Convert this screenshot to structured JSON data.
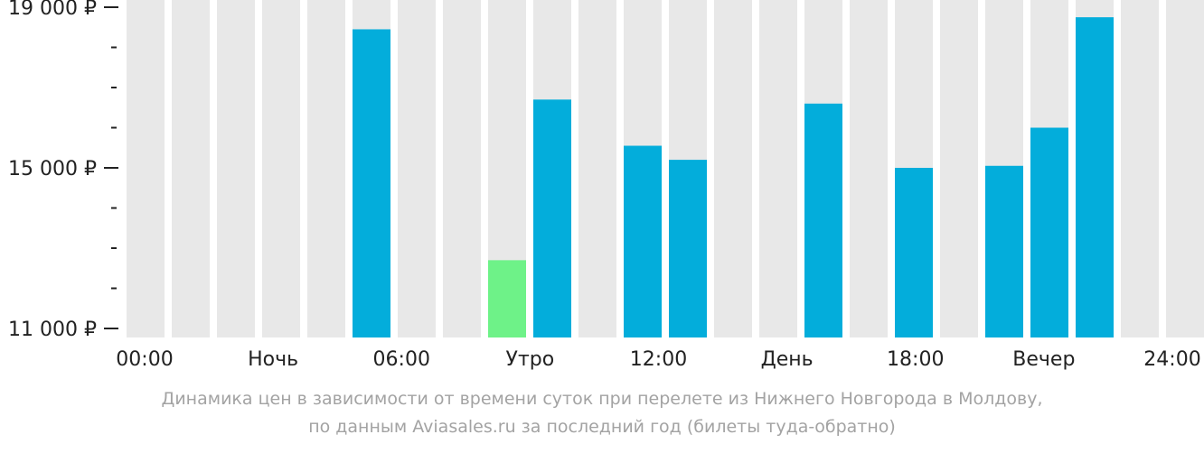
{
  "chart_data": {
    "type": "bar",
    "categories": [
      "00:00",
      "01:00",
      "02:00",
      "03:00",
      "04:00",
      "05:00",
      "06:00",
      "07:00",
      "08:00",
      "09:00",
      "10:00",
      "11:00",
      "12:00",
      "13:00",
      "14:00",
      "15:00",
      "16:00",
      "17:00",
      "18:00",
      "19:00",
      "20:00",
      "21:00",
      "22:00",
      "23:00"
    ],
    "values": [
      null,
      null,
      null,
      null,
      null,
      18450,
      null,
      null,
      12700,
      16700,
      null,
      15550,
      15200,
      null,
      null,
      16600,
      null,
      15000,
      null,
      15050,
      16000,
      18750,
      null,
      null
    ],
    "highlight_index": 8,
    "ylim": [
      11000,
      19000
    ],
    "yticks": [
      {
        "value": 11000,
        "label": "11 000 ₽"
      },
      {
        "value": 15000,
        "label": "15 000 ₽"
      },
      {
        "value": 19000,
        "label": "19 000 ₽"
      }
    ],
    "xtick_labels": [
      "00:00",
      "Ночь",
      "06:00",
      "Утро",
      "12:00",
      "День",
      "18:00",
      "Вечер",
      "24:00"
    ],
    "title": "",
    "xlabel": "",
    "ylabel": ""
  },
  "caption": {
    "line1": "Динамика цен в зависимости от времени суток при перелете из Нижнего Новгорода в Молдову,",
    "line2": "по данным Aviasales.ru за последний год (билеты туда-обратно)"
  },
  "colors": {
    "bar": "#03addb",
    "highlight": "#6ef288",
    "background_column": "#e8e8e8",
    "axis": "#222222",
    "caption": "#a3a3a3"
  }
}
